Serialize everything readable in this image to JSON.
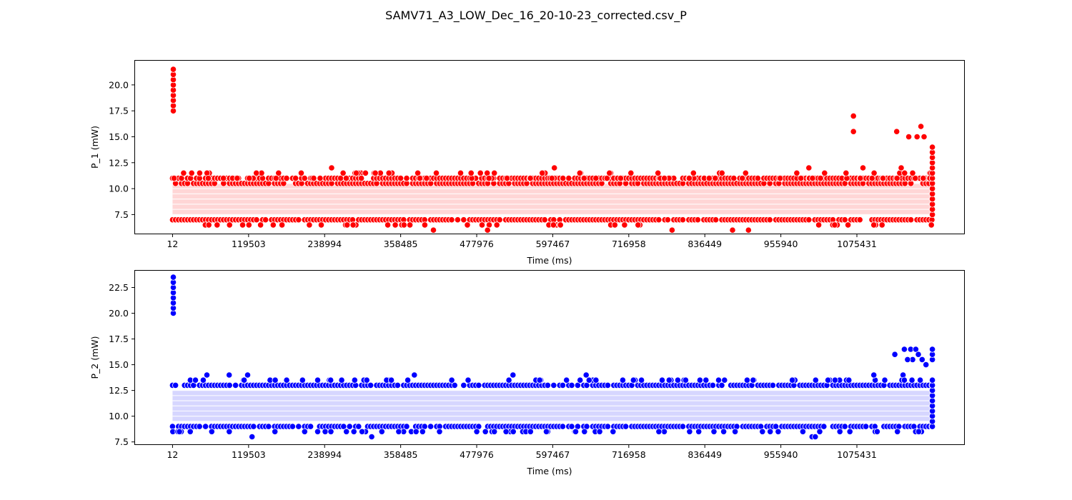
{
  "figure_title": "SAMV71_A3_LOW_Dec_16_20-10-23_corrected.csv_P",
  "chart_data": [
    {
      "type": "scatter",
      "xlabel": "Time (ms)",
      "ylabel": "P_1 (mW)",
      "xlim": [
        -60000,
        1245000
      ],
      "ylim": [
        5.6,
        22.4
      ],
      "xticks": [
        12,
        119503,
        238994,
        358485,
        477976,
        597467,
        716958,
        836449,
        955940,
        1075431
      ],
      "yticks": [
        7.5,
        10.0,
        12.5,
        15.0,
        17.5,
        20.0
      ],
      "ytick_labels": [
        "7.5",
        "10.0",
        "12.5",
        "15.0",
        "17.5",
        "20.0"
      ],
      "color": "#ff0000",
      "band_color": "#ffd6d6",
      "band_range": [
        7.5,
        10.5
      ],
      "dense_x_range": [
        12,
        1194000
      ],
      "dense_levels": [
        7.0,
        10.5,
        11.0
      ],
      "spike": {
        "x": 1200,
        "values": [
          17.5,
          18.0,
          18.5,
          19.0,
          19.5,
          20.0,
          20.5,
          21.0,
          21.5
        ]
      },
      "end_column": {
        "x": 1194000,
        "values": [
          7.5,
          8.0,
          8.5,
          9.0,
          9.5,
          10.0,
          10.5,
          11.0,
          11.5,
          12.0,
          12.5,
          13.0,
          13.5,
          14.0
        ]
      },
      "outliers": [
        {
          "x": 250000,
          "y": 12.0
        },
        {
          "x": 57000,
          "y": 6.5
        },
        {
          "x": 120000,
          "y": 6.5
        },
        {
          "x": 340000,
          "y": 11.5
        },
        {
          "x": 410000,
          "y": 6.0
        },
        {
          "x": 495000,
          "y": 6.0
        },
        {
          "x": 600000,
          "y": 12.0
        },
        {
          "x": 640000,
          "y": 11.5
        },
        {
          "x": 785000,
          "y": 6.0
        },
        {
          "x": 880000,
          "y": 6.0
        },
        {
          "x": 905000,
          "y": 6.0
        },
        {
          "x": 1070000,
          "y": 17.0
        },
        {
          "x": 1070000,
          "y": 15.5
        },
        {
          "x": 1138000,
          "y": 15.5
        },
        {
          "x": 1157000,
          "y": 15.0
        },
        {
          "x": 1176000,
          "y": 16.0
        },
        {
          "x": 1170000,
          "y": 15.0
        },
        {
          "x": 1181000,
          "y": 15.0
        },
        {
          "x": 1145000,
          "y": 12.0
        },
        {
          "x": 1000000,
          "y": 12.0
        },
        {
          "x": 1085000,
          "y": 12.0
        },
        {
          "x": 1163000,
          "y": 11.5
        },
        {
          "x": 215000,
          "y": 6.5
        },
        {
          "x": 695000,
          "y": 6.5
        }
      ],
      "seed": 11
    },
    {
      "type": "scatter",
      "xlabel": "Time (ms)",
      "ylabel": "P_2 (mW)",
      "xlim": [
        -60000,
        1245000
      ],
      "ylim": [
        7.2,
        24.2
      ],
      "xticks": [
        12,
        119503,
        238994,
        358485,
        477976,
        597467,
        716958,
        836449,
        955940,
        1075431
      ],
      "yticks": [
        7.5,
        10.0,
        12.5,
        15.0,
        17.5,
        20.0,
        22.5
      ],
      "ytick_labels": [
        "7.5",
        "10.0",
        "12.5",
        "15.0",
        "17.5",
        "20.0",
        "22.5"
      ],
      "color": "#0000ff",
      "band_color": "#d6d6ff",
      "band_range": [
        9.5,
        12.5
      ],
      "dense_x_range": [
        12,
        1194000
      ],
      "dense_levels": [
        9.0,
        13.0
      ],
      "spike": {
        "x": 1200,
        "values": [
          20.0,
          20.5,
          21.0,
          21.5,
          22.0,
          22.5,
          23.0,
          23.5
        ]
      },
      "end_column": {
        "x": 1194000,
        "values": [
          9.0,
          9.5,
          10.0,
          10.5,
          11.0,
          11.5,
          12.0,
          12.5,
          13.0,
          13.5,
          15.5,
          16.0,
          16.5
        ]
      },
      "outliers": [
        {
          "x": 54000,
          "y": 14.0
        },
        {
          "x": 89000,
          "y": 14.0
        },
        {
          "x": 118000,
          "y": 14.0
        },
        {
          "x": 380000,
          "y": 14.0
        },
        {
          "x": 535000,
          "y": 14.0
        },
        {
          "x": 650000,
          "y": 14.0
        },
        {
          "x": 1102000,
          "y": 14.0
        },
        {
          "x": 1148000,
          "y": 14.0
        },
        {
          "x": 313000,
          "y": 8.0
        },
        {
          "x": 125000,
          "y": 8.0
        },
        {
          "x": 1005000,
          "y": 8.0
        },
        {
          "x": 1010000,
          "y": 8.0
        },
        {
          "x": 1135000,
          "y": 16.0
        },
        {
          "x": 1150000,
          "y": 16.5
        },
        {
          "x": 1160000,
          "y": 16.5
        },
        {
          "x": 1168000,
          "y": 16.5
        },
        {
          "x": 1163000,
          "y": 15.5
        },
        {
          "x": 1172000,
          "y": 16.0
        },
        {
          "x": 1178000,
          "y": 15.5
        },
        {
          "x": 1184000,
          "y": 15.0
        },
        {
          "x": 1155000,
          "y": 15.5
        },
        {
          "x": 1150000,
          "y": 13.5
        }
      ],
      "seed": 29
    }
  ]
}
